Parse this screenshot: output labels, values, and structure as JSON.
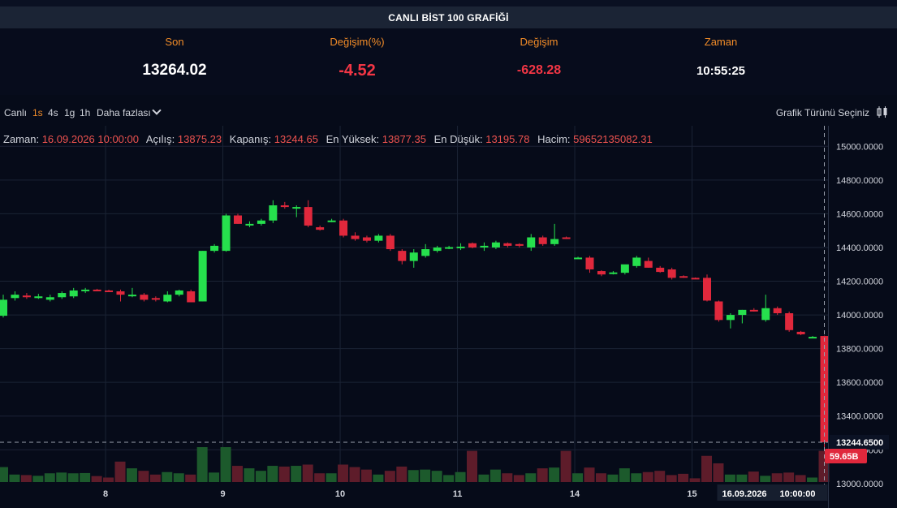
{
  "header": {
    "title": "CANLI BİST 100 GRAFİĞİ"
  },
  "stats": [
    {
      "label": "Son",
      "value": "13264.02"
    },
    {
      "label": "Değişim(%)",
      "value": "-4.52"
    },
    {
      "label": "Değişim",
      "value": "-628.28"
    },
    {
      "label": "Zaman",
      "value": "10:55:25"
    }
  ],
  "toolbar": {
    "live": "Canlı",
    "intervals": [
      "1s",
      "4s",
      "1g",
      "1h"
    ],
    "active_interval": "1s",
    "more": "Daha fazlası",
    "chart_type": "Grafik Türünü Seçiniz"
  },
  "legend": [
    {
      "key": "Zaman:",
      "value": "16.09.2026 10:00:00"
    },
    {
      "key": "Açılış:",
      "value": "13875.23"
    },
    {
      "key": "Kapanış:",
      "value": "13244.65"
    },
    {
      "key": "En Yüksek:",
      "value": "13877.35"
    },
    {
      "key": "En Düşük:",
      "value": "13195.78"
    },
    {
      "key": "Hacim:",
      "value": "59652135082.31"
    }
  ],
  "chart_data": {
    "type": "candlestick",
    "colors": {
      "up": "#26e04d",
      "down": "#e0283c",
      "background": "#060b19",
      "grid": "#1b2335"
    },
    "y_ticks": [
      "15000.0000",
      "14800.0000",
      "14600.0000",
      "14400.0000",
      "14200.0000",
      "14000.0000",
      "13800.0000",
      "13600.0000",
      "13400.0000",
      "13200.0000",
      "13000.0000"
    ],
    "ylim": [
      12980,
      15040
    ],
    "x_tick_labels": [
      "8",
      "9",
      "10",
      "11",
      "14",
      "15"
    ],
    "x_tick_index": [
      9,
      19,
      29,
      39,
      49,
      59
    ],
    "price_marker": "13244.6500",
    "volume_marker": "59.65B",
    "crosshair_date": "16.09.2026",
    "crosshair_time": "10:00:00",
    "candles": [
      {
        "o": 13995,
        "h": 14120,
        "l": 13985,
        "c": 14090,
        "v": 0.6
      },
      {
        "o": 14100,
        "h": 14140,
        "l": 14085,
        "c": 14120,
        "v": 0.3
      },
      {
        "o": 14115,
        "h": 14130,
        "l": 14095,
        "c": 14105,
        "v": 0.28
      },
      {
        "o": 14100,
        "h": 14125,
        "l": 14095,
        "c": 14110,
        "v": 0.25
      },
      {
        "o": 14090,
        "h": 14120,
        "l": 14080,
        "c": 14105,
        "v": 0.35
      },
      {
        "o": 14105,
        "h": 14140,
        "l": 14095,
        "c": 14130,
        "v": 0.38
      },
      {
        "o": 14110,
        "h": 14160,
        "l": 14100,
        "c": 14145,
        "v": 0.35
      },
      {
        "o": 14145,
        "h": 14160,
        "l": 14130,
        "c": 14150,
        "v": 0.36
      },
      {
        "o": 14150,
        "h": 14155,
        "l": 14140,
        "c": 14145,
        "v": 0.24
      },
      {
        "o": 14145,
        "h": 14150,
        "l": 14140,
        "c": 14142,
        "v": 0.18
      },
      {
        "o": 14140,
        "h": 14150,
        "l": 14080,
        "c": 14120,
        "v": 0.82
      },
      {
        "o": 14115,
        "h": 14160,
        "l": 14105,
        "c": 14120,
        "v": 0.55
      },
      {
        "o": 14120,
        "h": 14130,
        "l": 14080,
        "c": 14090,
        "v": 0.45
      },
      {
        "o": 14100,
        "h": 14110,
        "l": 14080,
        "c": 14090,
        "v": 0.3
      },
      {
        "o": 14080,
        "h": 14140,
        "l": 14075,
        "c": 14120,
        "v": 0.4
      },
      {
        "o": 14120,
        "h": 14150,
        "l": 14110,
        "c": 14145,
        "v": 0.35
      },
      {
        "o": 14140,
        "h": 14150,
        "l": 14075,
        "c": 14075,
        "v": 0.3
      },
      {
        "o": 14080,
        "h": 14380,
        "l": 14080,
        "c": 14380,
        "v": 1.4
      },
      {
        "o": 14380,
        "h": 14420,
        "l": 14370,
        "c": 14410,
        "v": 0.38
      },
      {
        "o": 14380,
        "h": 14600,
        "l": 14375,
        "c": 14590,
        "v": 1.4
      },
      {
        "o": 14590,
        "h": 14600,
        "l": 14540,
        "c": 14540,
        "v": 0.65
      },
      {
        "o": 14540,
        "h": 14555,
        "l": 14520,
        "c": 14540,
        "v": 0.55
      },
      {
        "o": 14540,
        "h": 14570,
        "l": 14530,
        "c": 14560,
        "v": 0.45
      },
      {
        "o": 14560,
        "h": 14680,
        "l": 14545,
        "c": 14650,
        "v": 0.65
      },
      {
        "o": 14650,
        "h": 14670,
        "l": 14630,
        "c": 14640,
        "v": 0.62
      },
      {
        "o": 14635,
        "h": 14650,
        "l": 14580,
        "c": 14640,
        "v": 0.65
      },
      {
        "o": 14640,
        "h": 14680,
        "l": 14520,
        "c": 14530,
        "v": 0.7
      },
      {
        "o": 14520,
        "h": 14530,
        "l": 14500,
        "c": 14505,
        "v": 0.35
      },
      {
        "o": 14560,
        "h": 14570,
        "l": 14550,
        "c": 14560,
        "v": 0.35
      },
      {
        "o": 14560,
        "h": 14570,
        "l": 14460,
        "c": 14470,
        "v": 0.7
      },
      {
        "o": 14470,
        "h": 14490,
        "l": 14440,
        "c": 14450,
        "v": 0.6
      },
      {
        "o": 14460,
        "h": 14470,
        "l": 14430,
        "c": 14440,
        "v": 0.5
      },
      {
        "o": 14440,
        "h": 14480,
        "l": 14430,
        "c": 14470,
        "v": 0.3
      },
      {
        "o": 14470,
        "h": 14480,
        "l": 14380,
        "c": 14390,
        "v": 0.45
      },
      {
        "o": 14380,
        "h": 14390,
        "l": 14300,
        "c": 14320,
        "v": 0.62
      },
      {
        "o": 14320,
        "h": 14390,
        "l": 14280,
        "c": 14370,
        "v": 0.48
      },
      {
        "o": 14350,
        "h": 14420,
        "l": 14340,
        "c": 14390,
        "v": 0.5
      },
      {
        "o": 14380,
        "h": 14410,
        "l": 14370,
        "c": 14400,
        "v": 0.45
      },
      {
        "o": 14400,
        "h": 14410,
        "l": 14390,
        "c": 14402,
        "v": 0.28
      },
      {
        "o": 14400,
        "h": 14425,
        "l": 14385,
        "c": 14405,
        "v": 0.4
      },
      {
        "o": 14425,
        "h": 14430,
        "l": 14395,
        "c": 14400,
        "v": 1.25
      },
      {
        "o": 14400,
        "h": 14430,
        "l": 14380,
        "c": 14410,
        "v": 0.3
      },
      {
        "o": 14400,
        "h": 14440,
        "l": 14390,
        "c": 14430,
        "v": 0.5
      },
      {
        "o": 14425,
        "h": 14430,
        "l": 14400,
        "c": 14410,
        "v": 0.35
      },
      {
        "o": 14420,
        "h": 14425,
        "l": 14400,
        "c": 14410,
        "v": 0.28
      },
      {
        "o": 14400,
        "h": 14480,
        "l": 14380,
        "c": 14460,
        "v": 0.35
      },
      {
        "o": 14460,
        "h": 14470,
        "l": 14410,
        "c": 14420,
        "v": 0.55
      },
      {
        "o": 14420,
        "h": 14540,
        "l": 14410,
        "c": 14450,
        "v": 0.58
      },
      {
        "o": 14460,
        "h": 14465,
        "l": 14450,
        "c": 14455,
        "v": 1.25
      },
      {
        "o": 14340,
        "h": 14345,
        "l": 14335,
        "c": 14340,
        "v": 0.35
      },
      {
        "o": 14340,
        "h": 14350,
        "l": 14250,
        "c": 14270,
        "v": 0.58
      },
      {
        "o": 14260,
        "h": 14265,
        "l": 14230,
        "c": 14240,
        "v": 0.35
      },
      {
        "o": 14250,
        "h": 14260,
        "l": 14240,
        "c": 14252,
        "v": 0.3
      },
      {
        "o": 14250,
        "h": 14290,
        "l": 14240,
        "c": 14300,
        "v": 0.55
      },
      {
        "o": 14290,
        "h": 14350,
        "l": 14280,
        "c": 14340,
        "v": 0.35
      },
      {
        "o": 14320,
        "h": 14340,
        "l": 14280,
        "c": 14280,
        "v": 0.4
      },
      {
        "o": 14280,
        "h": 14290,
        "l": 14250,
        "c": 14255,
        "v": 0.45
      },
      {
        "o": 14270,
        "h": 14280,
        "l": 14210,
        "c": 14220,
        "v": 0.28
      },
      {
        "o": 14230,
        "h": 14235,
        "l": 14220,
        "c": 14225,
        "v": 0.33
      },
      {
        "o": 14220,
        "h": 14222,
        "l": 14215,
        "c": 14218,
        "v": 0.15
      },
      {
        "o": 14220,
        "h": 14240,
        "l": 14080,
        "c": 14085,
        "v": 1.05
      },
      {
        "o": 14080,
        "h": 14085,
        "l": 13960,
        "c": 13970,
        "v": 0.75
      },
      {
        "o": 13970,
        "h": 14010,
        "l": 13920,
        "c": 14000,
        "v": 0.3
      },
      {
        "o": 14000,
        "h": 14030,
        "l": 13950,
        "c": 14030,
        "v": 0.3
      },
      {
        "o": 14030,
        "h": 14040,
        "l": 14020,
        "c": 14025,
        "v": 0.42
      },
      {
        "o": 13970,
        "h": 14120,
        "l": 13960,
        "c": 14040,
        "v": 0.25
      },
      {
        "o": 14040,
        "h": 14050,
        "l": 14000,
        "c": 14010,
        "v": 0.35
      },
      {
        "o": 14010,
        "h": 14020,
        "l": 13900,
        "c": 13910,
        "v": 0.38
      },
      {
        "o": 13900,
        "h": 13905,
        "l": 13880,
        "c": 13885,
        "v": 0.28
      },
      {
        "o": 13870,
        "h": 13875,
        "l": 13865,
        "c": 13870,
        "v": 0.18
      },
      {
        "o": 13875,
        "h": 13877,
        "l": 13196,
        "c": 13245,
        "v": 1.25
      }
    ]
  }
}
